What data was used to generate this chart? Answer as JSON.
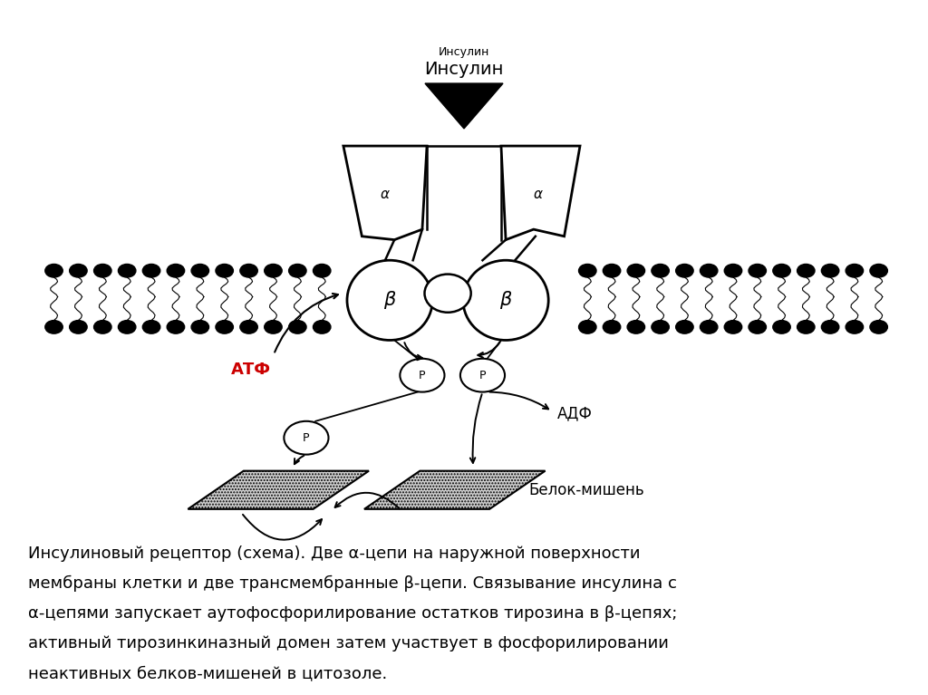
{
  "bg_color": "#ffffff",
  "fig_width": 10.24,
  "fig_height": 7.67,
  "dpi": 100,
  "insulin_label_small": "Инсулин",
  "insulin_label_big": "Инсулин",
  "alpha_label": "α",
  "beta_label": "β",
  "P_label": "P",
  "ATF_label": "АТФ",
  "ADF_label": "АДФ",
  "target_protein_label": "Белок-мишень",
  "caption_line1": "Инсулиновый рецептор (схема). Две α-цепи на наружной поверхности",
  "caption_line2": "мембраны клетки и две трансмембранные β-цепи. Связывание инсулина с",
  "caption_line3": "α-цепями запускает аутофосфорилирование остатков тирозина в β-цепях;",
  "caption_line4": "активный тирозинкиназный домен затем участвует в фосфорилировании",
  "caption_line5": "неактивных белков-мишеней в цитозоле.",
  "atf_color": "#cc0000",
  "line_color": "#000000"
}
